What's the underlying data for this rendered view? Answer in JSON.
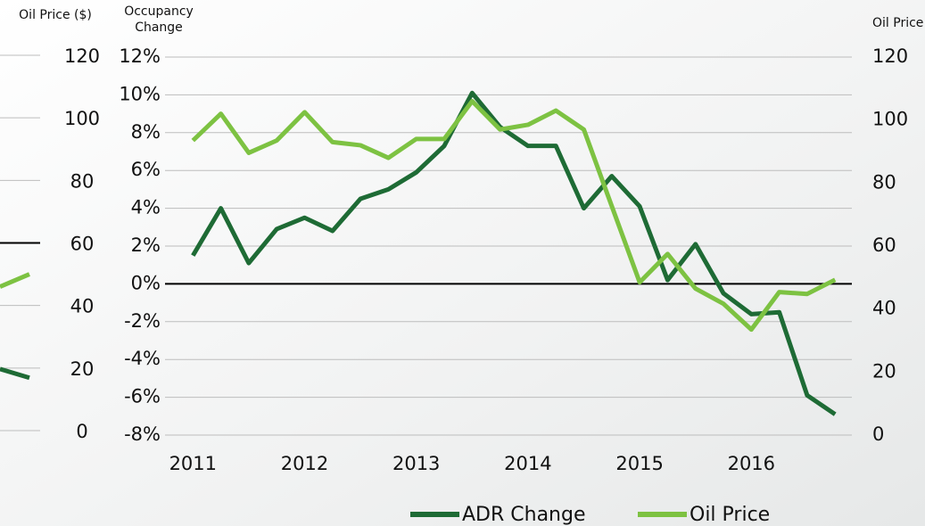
{
  "chart_data": [
    {
      "type": "line",
      "y_label": "Occupancy Change",
      "y2_label": "Oil Price ($)",
      "x": [
        2011,
        2011.25,
        2011.5,
        2011.75,
        2012,
        2012.25,
        2012.5,
        2012.75,
        2013,
        2013.25,
        2013.5,
        2013.75,
        2014,
        2014.25,
        2014.5,
        2014.75,
        2015,
        2015.25,
        2015.5,
        2015.75,
        2016,
        2016.25,
        2016.5,
        2016.75
      ],
      "xlim": [
        2010.75,
        2016.9
      ],
      "xticks": [
        2011,
        2012,
        2013,
        2014,
        2015,
        2016
      ],
      "ylim": [
        -8,
        12
      ],
      "yticks": [
        {
          "value": -8,
          "label": "-8%"
        },
        {
          "value": -6,
          "label": "-6%"
        },
        {
          "value": -4,
          "label": "-4%"
        },
        {
          "value": -2,
          "label": "-2%"
        },
        {
          "value": 0,
          "label": "0%"
        },
        {
          "value": 2,
          "label": "2%"
        },
        {
          "value": 4,
          "label": "4%"
        },
        {
          "value": 6,
          "label": "6%"
        },
        {
          "value": 8,
          "label": "8%"
        },
        {
          "value": 10,
          "label": "10%"
        },
        {
          "value": 12,
          "label": "12%"
        }
      ],
      "y2lim": [
        0,
        120
      ],
      "y2ticks": [
        0,
        20,
        40,
        60,
        80,
        100,
        120
      ],
      "grid": true,
      "baseline": 0,
      "legend": "bottom",
      "series": [
        {
          "name": "ADR Change",
          "color": "#1e6b35",
          "values": [
            1.5,
            4.0,
            1.1,
            2.9,
            3.5,
            2.8,
            4.5,
            5.0,
            5.9,
            7.3,
            10.1,
            8.3,
            7.3,
            7.3,
            4.0,
            5.7,
            4.1,
            0.2,
            2.1,
            -0.5,
            -1.6,
            -1.5,
            -5.9,
            -6.9
          ]
        },
        {
          "name": "Oil Price",
          "color": "#7dc242",
          "axis": "y2",
          "values": [
            93.5,
            102,
            89.6,
            93.5,
            102.5,
            93,
            92,
            88,
            94,
            94,
            106,
            97,
            98.5,
            103,
            97,
            72.7,
            48.5,
            57.5,
            46.5,
            41.7,
            33.5,
            45.4,
            44.8,
            49.3
          ]
        }
      ]
    },
    {
      "type": "line",
      "y_label": "Oil Price ($)",
      "ylim": [
        0,
        120
      ],
      "yticks": [
        0,
        20,
        40,
        60,
        80,
        100,
        120
      ],
      "grid": true,
      "baseline": 60,
      "series": [
        {
          "color": "#7dc242",
          "values": [
            46,
            50
          ]
        },
        {
          "color": "#1e6b35",
          "values": [
            19.7,
            16.9
          ]
        }
      ]
    }
  ]
}
